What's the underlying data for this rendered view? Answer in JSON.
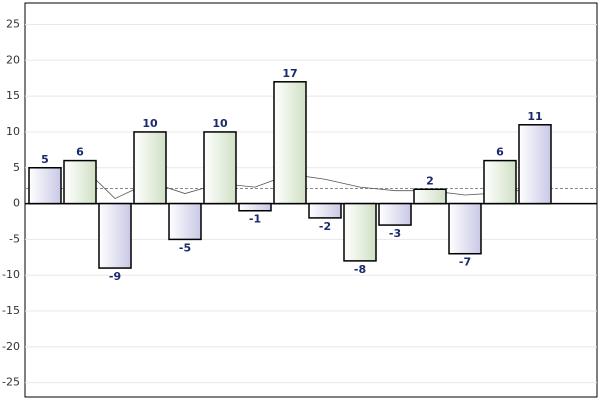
{
  "chart_data": {
    "type": "bar",
    "categories": [
      null,
      null,
      null,
      null,
      null,
      null,
      null,
      null,
      null,
      null,
      null,
      null,
      null,
      null,
      null
    ],
    "values": [
      5,
      6,
      -9,
      10,
      -5,
      10,
      -1,
      17,
      -2,
      -8,
      -3,
      2,
      -7,
      6,
      11
    ],
    "colors": [
      "#d8d8ee",
      "#dbe8d3"
    ],
    "trend": [
      null,
      5.5,
      0.7,
      3,
      1.4,
      2.8,
      2.3,
      4.1,
      3.4,
      2.3,
      1.8,
      1.8,
      1.2,
      1.5,
      2.1
    ],
    "mean": 2.1,
    "ylim": [
      -27,
      28
    ],
    "yticks": [
      -25,
      -20,
      -15,
      -10,
      -5,
      0,
      5,
      10,
      15,
      20,
      25
    ],
    "grid": true
  }
}
